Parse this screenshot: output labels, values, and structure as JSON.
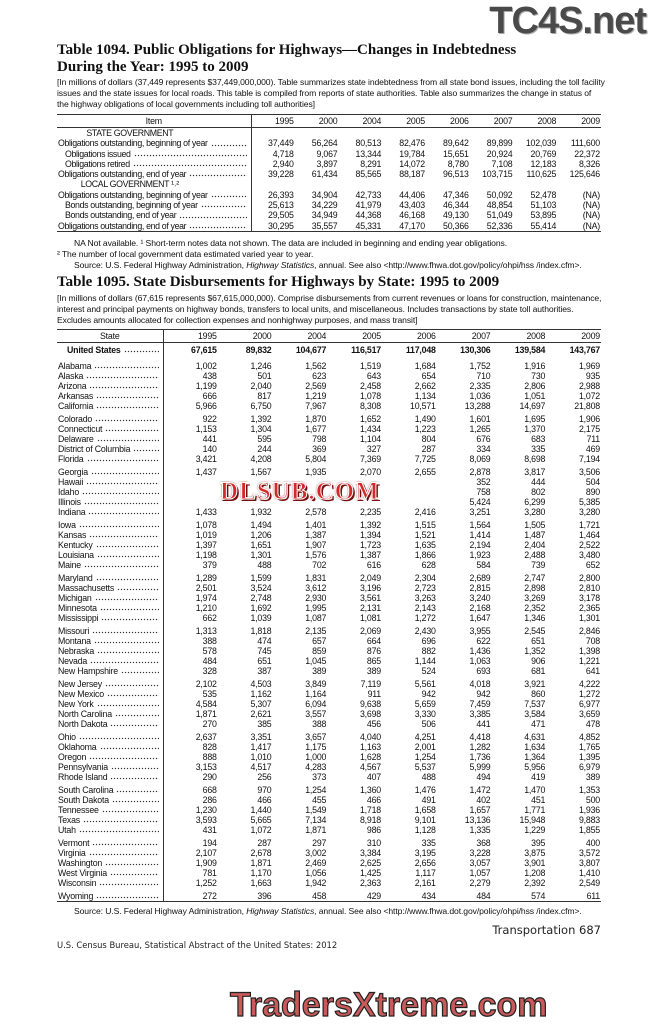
{
  "watermarks": {
    "top": "TC4S.net",
    "middle": "DLSUB.COM",
    "bottom": "TradersXtreme.com"
  },
  "t1094": {
    "title_line1": "Table 1094. Public Obligations for Highways—Changes in Indebtedness",
    "title_line2": "During the Year: 1995 to 2009",
    "headnote": "[In millions of dollars (37,449 represents $37,449,000,000). Table summarizes state indebtedness from all state bond issues, including the toll facility issues and the state issues for local roads. This table is compiled from reports of state authorities. Table also summarizes the change in status of the highway obligations of local governments including toll authorities]",
    "columns": [
      "Item",
      "1995",
      "2000",
      "2004",
      "2005",
      "2006",
      "2007",
      "2008",
      "2009"
    ],
    "rows": [
      {
        "label": "STATE GOVERNMENT",
        "heading": true,
        "values": []
      },
      {
        "label": "Obligations outstanding, beginning of year",
        "values": [
          "37,449",
          "56,264",
          "80,513",
          "82,476",
          "89,642",
          "89,899",
          "102,039",
          "111,600"
        ]
      },
      {
        "label": "Obligations issued",
        "indent": true,
        "values": [
          "4,718",
          "9,067",
          "13,344",
          "19,784",
          "15,651",
          "20,924",
          "20,769",
          "22,372"
        ]
      },
      {
        "label": "Obligations retired",
        "indent": true,
        "values": [
          "2,940",
          "3,897",
          "8,291",
          "14,072",
          "8,780",
          "7,108",
          "12,183",
          "8,326"
        ]
      },
      {
        "label": "Obligations outstanding, end of year",
        "values": [
          "39,228",
          "61,434",
          "85,565",
          "88,187",
          "96,513",
          "103,715",
          "110,625",
          "125,646"
        ]
      },
      {
        "label": "LOCAL GOVERNMENT ¹˒²",
        "heading": true,
        "values": []
      },
      {
        "label": "Obligations outstanding, beginning of year",
        "values": [
          "26,393",
          "34,904",
          "42,733",
          "44,406",
          "47,346",
          "50,092",
          "52,478",
          "(NA)"
        ]
      },
      {
        "label": "Bonds outstanding, beginning of year",
        "indent": true,
        "values": [
          "25,613",
          "34,229",
          "41,979",
          "43,403",
          "46,344",
          "48,854",
          "51,103",
          "(NA)"
        ]
      },
      {
        "label": "Bonds outstanding, end of year",
        "indent": true,
        "values": [
          "29,505",
          "34,949",
          "44,368",
          "46,168",
          "49,130",
          "51,049",
          "53,895",
          "(NA)"
        ]
      },
      {
        "label": "Obligations outstanding, end of year",
        "values": [
          "30,295",
          "35,557",
          "45,331",
          "47,170",
          "50,366",
          "52,336",
          "55,414",
          "(NA)"
        ]
      }
    ],
    "footnote1": "NA Not available. ¹ Short-term notes data not shown. The data are included in beginning and ending year obligations.",
    "footnote2": "² The number of local government data estimated varied year to year.",
    "source_prefix": "Source: U.S. Federal Highway Administration, ",
    "source_italic": "Highway Statistics",
    "source_suffix": ", annual. See also <http://www.fhwa.dot.gov/policy/ohpi/hss /index.cfm>."
  },
  "t1095": {
    "title": "Table 1095. State Disbursements for Highways by State: 1995 to 2009",
    "headnote": "[In millions of dollars (67,615 represents $67,615,000,000). Comprise disbursements from current revenues or loans for construction, maintenance, interest and principal payments on highway bonds, transfers to local units, and miscellaneous. Includes transactions by state toll authorities. Excludes amounts allocated for collection expenses and nonhighway purposes, and mass transit]",
    "columns": [
      "State",
      "1995",
      "2000",
      "2004",
      "2005",
      "2006",
      "2007",
      "2008",
      "2009"
    ],
    "total": {
      "label": "United States",
      "values": [
        "67,615",
        "89,832",
        "104,677",
        "116,517",
        "117,048",
        "130,306",
        "139,584",
        "143,767"
      ]
    },
    "rows": [
      {
        "label": "Alabama",
        "values": [
          "1,002",
          "1,246",
          "1,562",
          "1,519",
          "1,684",
          "1,752",
          "1,916",
          "1,969"
        ]
      },
      {
        "label": "Alaska",
        "values": [
          "438",
          "501",
          "623",
          "643",
          "654",
          "710",
          "730",
          "935"
        ]
      },
      {
        "label": "Arizona",
        "values": [
          "1,199",
          "2,040",
          "2,569",
          "2,458",
          "2,662",
          "2,335",
          "2,806",
          "2,988"
        ]
      },
      {
        "label": "Arkansas",
        "values": [
          "666",
          "817",
          "1,219",
          "1,078",
          "1,134",
          "1,036",
          "1,051",
          "1,072"
        ]
      },
      {
        "label": "California",
        "values": [
          "5,966",
          "6,750",
          "7,967",
          "8,308",
          "10,571",
          "13,288",
          "14,697",
          "21,808"
        ]
      },
      {
        "label": "Colorado",
        "values": [
          "922",
          "1,392",
          "1,870",
          "1,652",
          "1,490",
          "1,601",
          "1,695",
          "1,906"
        ]
      },
      {
        "label": "Connecticut",
        "values": [
          "1,153",
          "1,304",
          "1,677",
          "1,434",
          "1,223",
          "1,265",
          "1,370",
          "2,175"
        ]
      },
      {
        "label": "Delaware",
        "values": [
          "441",
          "595",
          "798",
          "1,104",
          "804",
          "676",
          "683",
          "711"
        ]
      },
      {
        "label": "District of Columbia",
        "values": [
          "140",
          "244",
          "369",
          "327",
          "287",
          "334",
          "335",
          "469"
        ]
      },
      {
        "label": "Florida",
        "values": [
          "3,421",
          "4,208",
          "5,804",
          "7,369",
          "7,725",
          "8,069",
          "8,698",
          "7,194"
        ]
      },
      {
        "label": "Georgia",
        "values": [
          "1,437",
          "1,567",
          "1,935",
          "2,070",
          "2,655",
          "2,878",
          "3,817",
          "3,506"
        ]
      },
      {
        "label": "Hawaii",
        "values": [
          "",
          "",
          "",
          "",
          "",
          "352",
          "444",
          "504"
        ]
      },
      {
        "label": "Idaho",
        "values": [
          "",
          "",
          "",
          "",
          "",
          "758",
          "802",
          "890"
        ]
      },
      {
        "label": "Illinois",
        "values": [
          "",
          "",
          "",
          "",
          "",
          "5,424",
          "6,299",
          "5,385"
        ]
      },
      {
        "label": "Indiana",
        "values": [
          "1,433",
          "1,932",
          "2,578",
          "2,235",
          "2,416",
          "3,251",
          "3,280",
          "3,280"
        ]
      },
      {
        "label": "Iowa",
        "values": [
          "1,078",
          "1,494",
          "1,401",
          "1,392",
          "1,515",
          "1,564",
          "1,505",
          "1,721"
        ]
      },
      {
        "label": "Kansas",
        "values": [
          "1,019",
          "1,206",
          "1,387",
          "1,394",
          "1,521",
          "1,414",
          "1,487",
          "1,464"
        ]
      },
      {
        "label": "Kentucky",
        "values": [
          "1,397",
          "1,651",
          "1,907",
          "1,723",
          "1,635",
          "2,194",
          "2,404",
          "2,522"
        ]
      },
      {
        "label": "Louisiana",
        "values": [
          "1,198",
          "1,301",
          "1,576",
          "1,387",
          "1,866",
          "1,923",
          "2,488",
          "3,480"
        ]
      },
      {
        "label": "Maine",
        "values": [
          "379",
          "488",
          "702",
          "616",
          "628",
          "584",
          "739",
          "652"
        ]
      },
      {
        "label": "Maryland",
        "values": [
          "1,289",
          "1,599",
          "1,831",
          "2,049",
          "2,304",
          "2,689",
          "2,747",
          "2,800"
        ]
      },
      {
        "label": "Massachusetts",
        "values": [
          "2,501",
          "3,524",
          "3,612",
          "3,196",
          "2,723",
          "2,815",
          "2,898",
          "2,810"
        ]
      },
      {
        "label": "Michigan",
        "values": [
          "1,974",
          "2,748",
          "2,930",
          "3,561",
          "3,263",
          "3,240",
          "3,269",
          "3,178"
        ]
      },
      {
        "label": "Minnesota",
        "values": [
          "1,210",
          "1,692",
          "1,995",
          "2,131",
          "2,143",
          "2,168",
          "2,352",
          "2,365"
        ]
      },
      {
        "label": "Mississippi",
        "values": [
          "662",
          "1,039",
          "1,087",
          "1,081",
          "1,272",
          "1,647",
          "1,346",
          "1,301"
        ]
      },
      {
        "label": "Missouri",
        "values": [
          "1,313",
          "1,818",
          "2,135",
          "2,069",
          "2,430",
          "3,955",
          "2,545",
          "2,846"
        ]
      },
      {
        "label": "Montana",
        "values": [
          "388",
          "474",
          "657",
          "664",
          "696",
          "622",
          "651",
          "708"
        ]
      },
      {
        "label": "Nebraska",
        "values": [
          "578",
          "745",
          "859",
          "876",
          "882",
          "1,436",
          "1,352",
          "1,398"
        ]
      },
      {
        "label": "Nevada",
        "values": [
          "484",
          "651",
          "1,045",
          "865",
          "1,144",
          "1,063",
          "906",
          "1,221"
        ]
      },
      {
        "label": "New Hampshire",
        "values": [
          "328",
          "387",
          "389",
          "389",
          "524",
          "693",
          "681",
          "641"
        ]
      },
      {
        "label": "New Jersey",
        "values": [
          "2,102",
          "4,503",
          "3,849",
          "7,119",
          "5,561",
          "4,018",
          "3,921",
          "4,222"
        ]
      },
      {
        "label": "New Mexico",
        "values": [
          "535",
          "1,162",
          "1,164",
          "911",
          "942",
          "942",
          "860",
          "1,272"
        ]
      },
      {
        "label": "New York",
        "values": [
          "4,584",
          "5,307",
          "6,094",
          "9,638",
          "5,659",
          "7,459",
          "7,537",
          "6,977"
        ]
      },
      {
        "label": "North Carolina",
        "values": [
          "1,871",
          "2,621",
          "3,557",
          "3,698",
          "3,330",
          "3,385",
          "3,584",
          "3,659"
        ]
      },
      {
        "label": "North Dakota",
        "values": [
          "270",
          "385",
          "388",
          "456",
          "506",
          "441",
          "471",
          "478"
        ]
      },
      {
        "label": "Ohio",
        "values": [
          "2,637",
          "3,351",
          "3,657",
          "4,040",
          "4,251",
          "4,418",
          "4,631",
          "4,852"
        ]
      },
      {
        "label": "Oklahoma",
        "values": [
          "828",
          "1,417",
          "1,175",
          "1,163",
          "2,001",
          "1,282",
          "1,634",
          "1,765"
        ]
      },
      {
        "label": "Oregon",
        "values": [
          "888",
          "1,010",
          "1,000",
          "1,628",
          "1,254",
          "1,736",
          "1,364",
          "1,395"
        ]
      },
      {
        "label": "Pennsylvania",
        "values": [
          "3,153",
          "4,517",
          "4,283",
          "4,567",
          "5,537",
          "5,999",
          "5,956",
          "6,979"
        ]
      },
      {
        "label": "Rhode Island",
        "values": [
          "290",
          "256",
          "373",
          "407",
          "488",
          "494",
          "419",
          "389"
        ]
      },
      {
        "label": "South Carolina",
        "values": [
          "668",
          "970",
          "1,254",
          "1,360",
          "1,476",
          "1,472",
          "1,470",
          "1,353"
        ]
      },
      {
        "label": "South Dakota",
        "values": [
          "286",
          "466",
          "455",
          "466",
          "491",
          "402",
          "451",
          "500"
        ]
      },
      {
        "label": "Tennessee",
        "values": [
          "1,230",
          "1,440",
          "1,549",
          "1,718",
          "1,658",
          "1,657",
          "1,771",
          "1,936"
        ]
      },
      {
        "label": "Texas",
        "values": [
          "3,593",
          "5,665",
          "7,134",
          "8,918",
          "9,101",
          "13,136",
          "15,948",
          "9,883"
        ]
      },
      {
        "label": "Utah",
        "values": [
          "431",
          "1,072",
          "1,871",
          "986",
          "1,128",
          "1,335",
          "1,229",
          "1,855"
        ]
      },
      {
        "label": "Vermont",
        "values": [
          "194",
          "287",
          "297",
          "310",
          "335",
          "368",
          "395",
          "400"
        ]
      },
      {
        "label": "Virginia",
        "values": [
          "2,107",
          "2,678",
          "3,002",
          "3,384",
          "3,195",
          "3,228",
          "3,875",
          "3,572"
        ]
      },
      {
        "label": "Washington",
        "values": [
          "1,909",
          "1,871",
          "2,469",
          "2,625",
          "2,656",
          "3,057",
          "3,901",
          "3,807"
        ]
      },
      {
        "label": "West Virginia",
        "values": [
          "781",
          "1,170",
          "1,056",
          "1,425",
          "1,117",
          "1,057",
          "1,208",
          "1,410"
        ]
      },
      {
        "label": "Wisconsin",
        "values": [
          "1,252",
          "1,663",
          "1,942",
          "2,363",
          "2,161",
          "2,279",
          "2,392",
          "2,549"
        ]
      },
      {
        "label": "Wyoming",
        "values": [
          "272",
          "396",
          "458",
          "429",
          "434",
          "484",
          "574",
          "611"
        ]
      }
    ],
    "source_prefix": "Source: U.S. Federal Highway Administration, ",
    "source_italic": "Highway Statistics",
    "source_suffix": ", annual. See also <http://www.fhwa.dot.gov/policy/ohpi/hss /index.cfm>."
  },
  "footer": {
    "left": "U.S. Census Bureau, Statistical Abstract of the United States: 2012",
    "right": "Transportation  687"
  }
}
